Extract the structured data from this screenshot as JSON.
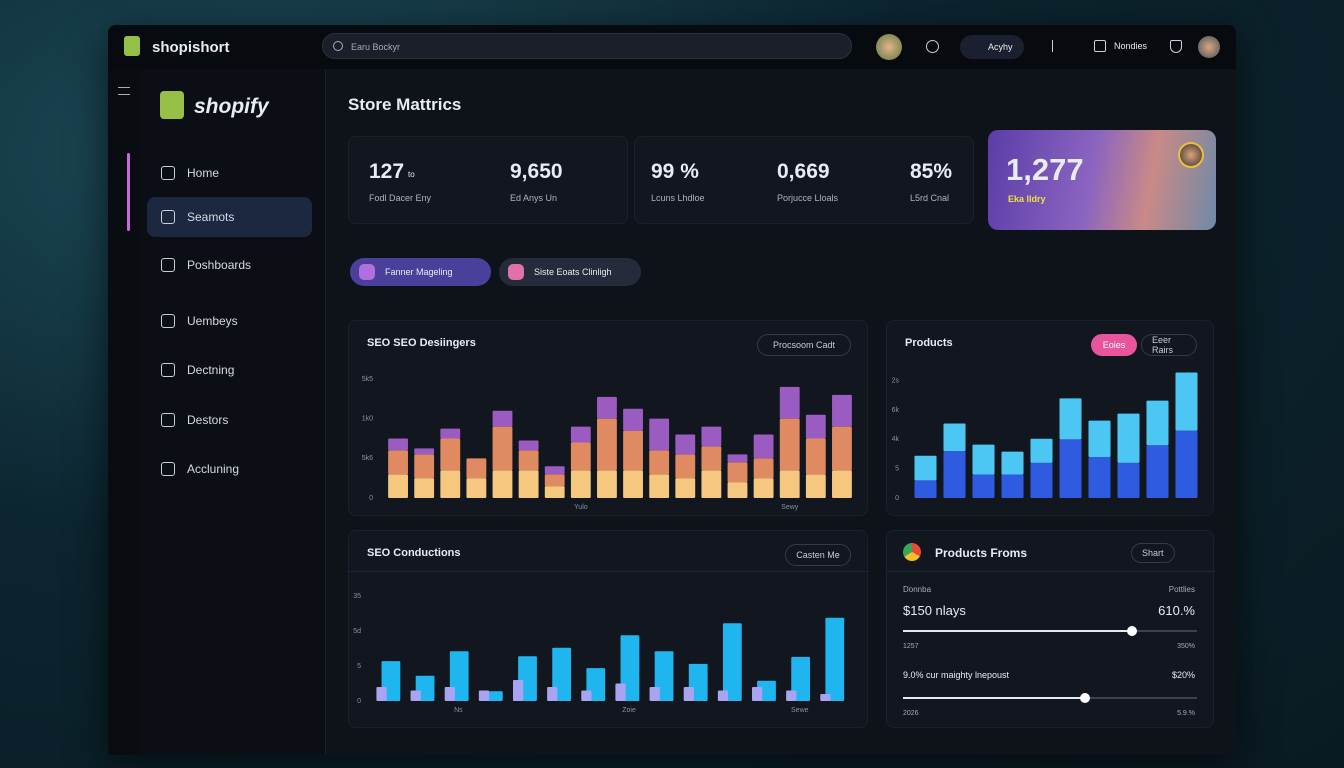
{
  "topbar": {
    "brand": "shopishort",
    "search": "Earu Bockyr",
    "account": "Acyhy",
    "notifications": "Nondies"
  },
  "sidebar": {
    "logo": "shopify",
    "nav": [
      "Home",
      "Seamots",
      "Poshboards",
      "Uembeys",
      "Dectning",
      "Destors",
      "Accluning"
    ]
  },
  "page_title": "Store Mattrics",
  "metrics": [
    {
      "value": "127",
      "unit": "to",
      "label": "Fodl Dacer Eny"
    },
    {
      "value": "9,650",
      "label": "Ed Anys Un"
    },
    {
      "value": "99 %",
      "label": "Lcuns Lhdloe"
    },
    {
      "value": "0,669",
      "label": "Porjucce Lloals"
    },
    {
      "value": "85%",
      "label": "L5rd Cnal"
    }
  ],
  "highlight": {
    "value": "1,277",
    "label": "Eka lldry"
  },
  "chips": [
    "Fanner Mageling",
    "Siste Eoats Clinligh"
  ],
  "charts": [
    {
      "type": "bar",
      "stacked": true,
      "title": "SEO SEO Desiingers",
      "buttons": [
        "Procsoom Cadt"
      ],
      "categories": [
        null,
        null,
        null,
        null,
        null,
        null,
        null,
        "Yulo",
        null,
        null,
        null,
        null,
        null,
        null,
        null,
        "Sewy",
        null,
        null
      ],
      "ylim": [
        0,
        30
      ],
      "yticks": [
        0,
        {
          "value": 10,
          "label": "5k6"
        },
        {
          "value": 20,
          "label": "1k0"
        },
        {
          "value": 30,
          "label": "5k5"
        }
      ],
      "series": [
        {
          "color": "#f6c87f",
          "values": [
            6,
            5,
            7,
            5,
            7,
            7,
            3,
            7,
            7,
            7,
            6,
            5,
            7,
            4,
            5,
            7,
            6,
            7
          ]
        },
        {
          "color": "#e08a62",
          "values": [
            6,
            6,
            8,
            5,
            11,
            5,
            3,
            7,
            13,
            10,
            6,
            6,
            6,
            5,
            5,
            13,
            9,
            11
          ]
        },
        {
          "color": "#9a5cc0",
          "values": [
            3,
            1.5,
            2.5,
            0,
            4,
            2.5,
            2,
            4,
            5.5,
            5.5,
            8,
            5,
            5,
            2,
            6,
            8,
            6,
            8
          ]
        }
      ]
    },
    {
      "type": "bar",
      "stacked": true,
      "title": "Products",
      "buttons": [
        "Eoies",
        "Eeer Rairs"
      ],
      "categories": [
        null,
        null,
        null,
        null,
        null,
        null,
        null,
        null,
        null,
        null
      ],
      "ylim": [
        0,
        22
      ],
      "yticks": [
        0,
        5,
        {
          "value": 10,
          "label": "4k"
        },
        {
          "value": 15,
          "label": "6k"
        },
        {
          "value": 20,
          "label": "2s"
        }
      ],
      "series": [
        {
          "color": "#2e5be0",
          "values": [
            3,
            8,
            4,
            4,
            6,
            10,
            7,
            6,
            9,
            11.5
          ]
        },
        {
          "color": "#4cc6f2",
          "values": [
            4.2,
            4.7,
            5.1,
            3.9,
            4.1,
            7,
            6.2,
            8.4,
            7.6,
            9.9
          ]
        }
      ]
    },
    {
      "type": "bar",
      "stacked": false,
      "title": "SEO Conductions",
      "buttons": [
        "Casten Me"
      ],
      "categories": [
        null,
        null,
        "Ns",
        null,
        null,
        null,
        null,
        "Zoie",
        null,
        null,
        null,
        null,
        "Sewe",
        null
      ],
      "ylim": [
        0,
        15
      ],
      "yticks": [
        0,
        5,
        {
          "value": 10,
          "label": "5d"
        },
        {
          "value": 15,
          "label": "35"
        }
      ],
      "series": [
        {
          "color": "#1fb6f0",
          "values": [
            5.7,
            3.6,
            7.1,
            1.4,
            6.4,
            7.6,
            4.7,
            9.4,
            7.1,
            5.3,
            11.1,
            2.9,
            6.3,
            11.9
          ]
        },
        {
          "color": "#a9a4f2",
          "values": [
            2,
            1.5,
            2,
            1.5,
            3,
            2,
            1.5,
            2.5,
            2,
            2,
            1.5,
            2,
            1.5,
            1
          ]
        }
      ]
    }
  ],
  "products_from": {
    "title": "Products Froms",
    "button": "Shart",
    "head": {
      "left": "Donnba",
      "right": "Pottlies"
    },
    "rows": [
      {
        "label": "$150 nlays",
        "value": "610.%",
        "progress": 78,
        "min": "1257",
        "max": "350%"
      },
      {
        "label": "9.0% cur maighty lnepoust",
        "value": "$20%",
        "progress": 62,
        "min": "2026",
        "max": "5.9.%"
      }
    ]
  }
}
